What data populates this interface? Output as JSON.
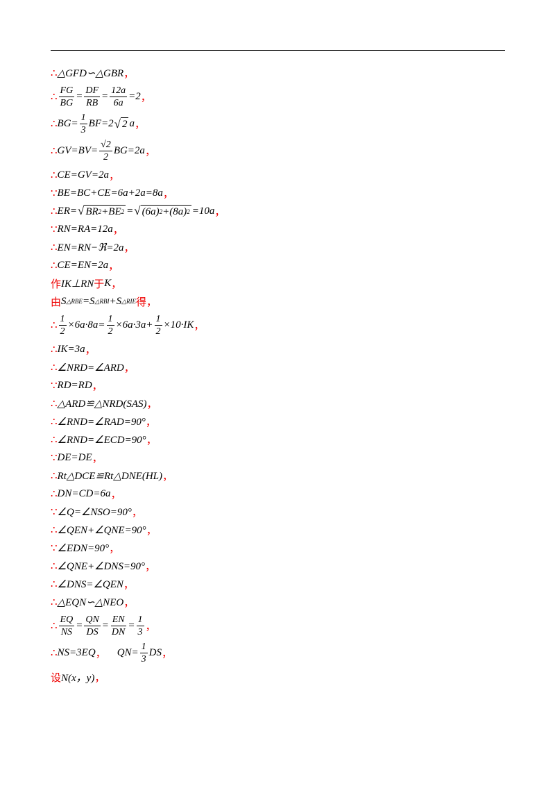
{
  "lines": [
    [
      "∴",
      "△GFD∽△GBR",
      "，"
    ],
    [
      "∴",
      {
        "frac": [
          "FG",
          "BG"
        ]
      },
      "=",
      {
        "frac": [
          "DF",
          "RB"
        ]
      },
      "=",
      {
        "frac": [
          "12a",
          "6a"
        ]
      },
      "=2",
      "，"
    ],
    [
      "∴",
      "BG=",
      {
        "frac": [
          "1",
          "3"
        ]
      },
      "BF=2",
      {
        "sqrt": [
          "2"
        ]
      },
      "a",
      "，"
    ],
    [
      "∴",
      "GV=BV=",
      {
        "frac": [
          "√2",
          "2"
        ]
      },
      "BG=2a",
      "，"
    ],
    [
      "∴",
      "CE=GV=2a",
      "，"
    ],
    [
      "∵",
      "BE=BC+CE=6a+2a=8a",
      "，"
    ],
    [
      "∴",
      "ER=",
      {
        "sqrt": [
          "BR",
          {
            "sup": "2"
          },
          "+BE",
          {
            "sup": "2"
          }
        ]
      },
      "=",
      {
        "sqrt": [
          "(6a)",
          {
            "sup": "2"
          },
          "+(8a)",
          {
            "sup": "2"
          }
        ]
      },
      "=10a",
      "，"
    ],
    [
      "∵",
      "RN=RA=12a",
      "，"
    ],
    [
      "∴",
      "EN=RN−ℜ=2a",
      "，"
    ],
    [
      "∴",
      "CE=EN=2a",
      "，"
    ],
    [
      "作",
      "IK⊥RN",
      "于",
      "K",
      "，"
    ],
    [
      "由",
      "S",
      {
        "sub": "△RBE"
      },
      "=S",
      {
        "sub": "△RBI"
      },
      "+S",
      {
        "sub": "△RIE"
      },
      "得",
      "，"
    ],
    [
      "∴",
      {
        "frac": [
          "1",
          "2"
        ]
      },
      "×6a·8a=",
      {
        "frac": [
          "1",
          "2"
        ]
      },
      "×6a·3a+",
      {
        "frac": [
          "1",
          "2"
        ]
      },
      "×10·IK",
      "，"
    ],
    [
      "∴",
      "IK=3a",
      "，"
    ],
    [
      "∴",
      "∠NRD=∠ARD",
      "，"
    ],
    [
      "∵",
      "RD=RD",
      "，"
    ],
    [
      "∴",
      "△ARD≌△NRD(SAS)",
      "，"
    ],
    [
      "∴",
      "∠RND=∠RAD=90°",
      "，"
    ],
    [
      "∴",
      "∠RND=∠ECD=90°",
      "，"
    ],
    [
      "∵",
      "DE=DE",
      "，"
    ],
    [
      "∴",
      "Rt△DCE≌Rt△DNE(HL)",
      "，"
    ],
    [
      "∴",
      "DN=CD=6a",
      "，"
    ],
    [
      "∵",
      "∠Q=∠NSO=90°",
      "，"
    ],
    [
      "∴",
      "∠QEN+∠QNE=90°",
      "，"
    ],
    [
      "∵",
      "∠EDN=90°",
      "，"
    ],
    [
      "∴",
      "∠QNE+∠DNS=90°",
      "，"
    ],
    [
      "∴",
      "∠DNS=∠QEN",
      "，"
    ],
    [
      "∴",
      "△EQN∽△NEO",
      "，"
    ],
    [
      "∴",
      {
        "frac": [
          "EQ",
          "NS"
        ]
      },
      "=",
      {
        "frac": [
          "QN",
          "DS"
        ]
      },
      "=",
      {
        "frac": [
          "EN",
          "DN"
        ]
      },
      "=",
      {
        "frac": [
          "1",
          "3"
        ]
      },
      "，"
    ],
    [
      "∴",
      "NS=3EQ",
      "，",
      "QN=",
      {
        "frac": [
          "1",
          "3"
        ]
      },
      "DS",
      "，"
    ],
    [
      "设",
      "N(x，y)",
      "，"
    ]
  ]
}
